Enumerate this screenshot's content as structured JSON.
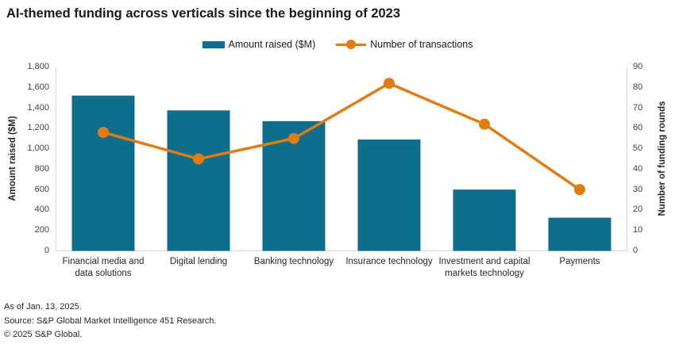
{
  "title": "AI-themed funding across verticals since the beginning of 2023",
  "chart_data": {
    "type": "bar+line combo",
    "title": "AI-themed funding across verticals since the beginning of 2023",
    "categories": [
      "Financial media and data solutions",
      "Digital lending",
      "Banking technology",
      "Insurance technology",
      "Investment and capital markets technology",
      "Payments"
    ],
    "series": [
      {
        "name": "Amount raised ($M)",
        "type": "bar",
        "axis": "left",
        "color": "#0E6E8C",
        "values": [
          1520,
          1375,
          1270,
          1090,
          600,
          325
        ]
      },
      {
        "name": "Number of transactions",
        "type": "line",
        "axis": "right",
        "color": "#E07C12",
        "values": [
          58,
          45,
          55,
          82,
          62,
          30
        ]
      }
    ],
    "left_axis": {
      "label": "Amount raised ($M)",
      "min": 0,
      "max": 1800,
      "step": 200
    },
    "right_axis": {
      "label": "Number of funding rounds",
      "min": 0,
      "max": 90,
      "step": 10
    },
    "grid": false,
    "legend_position": "top-center",
    "axis_line_color": "#D8D8D8"
  },
  "footnotes": [
    "As of Jan. 13, 2025.",
    "Source: S&P Global Market Intelligence 451 Research.",
    "© 2025 S&P Global."
  ]
}
